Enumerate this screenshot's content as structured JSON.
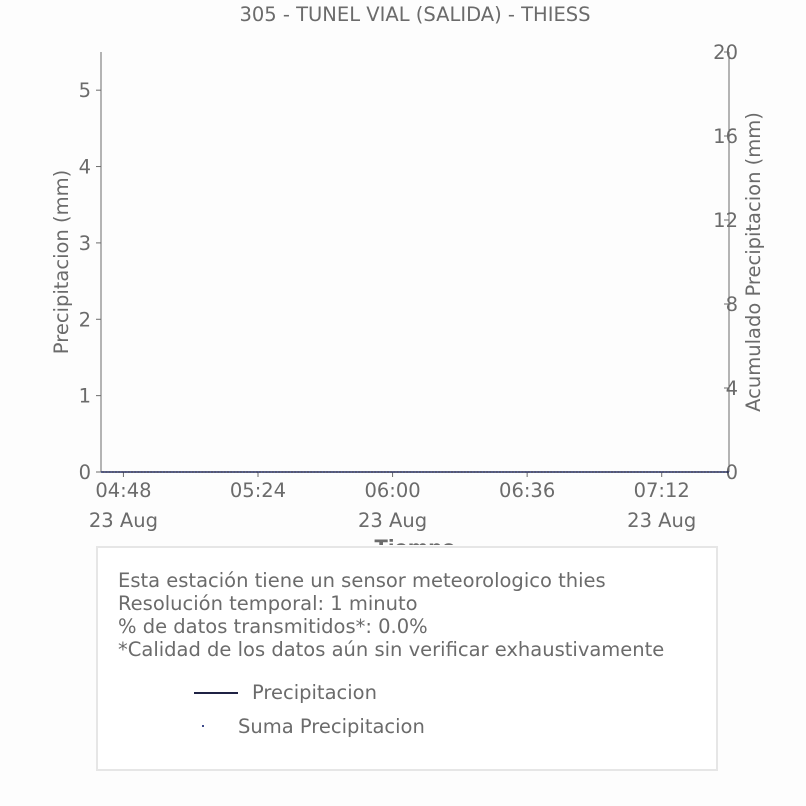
{
  "chart_data": {
    "type": "line",
    "title": "305 - TUNEL VIAL (SALIDA) - THIESS",
    "xlabel": "Tiempo",
    "ylabel": "Precipitacion (mm)",
    "y2label": "Acumulado Precipitacion (mm)",
    "x_ticks": [
      {
        "time": "04:48",
        "date": "23 Aug"
      },
      {
        "time": "05:24",
        "date": ""
      },
      {
        "time": "06:00",
        "date": "23 Aug"
      },
      {
        "time": "06:36",
        "date": ""
      },
      {
        "time": "07:12",
        "date": "23 Aug"
      }
    ],
    "x_range": [
      "04:42",
      "07:30"
    ],
    "ylim": [
      0,
      5.5
    ],
    "y_ticks": [
      0,
      1,
      2,
      3,
      4,
      5
    ],
    "y2lim": [
      0,
      20
    ],
    "y2_ticks": [
      0,
      4,
      8,
      12,
      16,
      20
    ],
    "grid": false,
    "series": [
      {
        "name": "Precipitacion",
        "axis": "left",
        "style": "line",
        "color": "#1f2244",
        "x": [
          "04:42",
          "07:30"
        ],
        "values": [
          0,
          0
        ]
      },
      {
        "name": "Suma Precipitacion",
        "axis": "right",
        "style": "dotted",
        "color": "#3d4a8a",
        "x": [
          "04:42",
          "07:30"
        ],
        "values": [
          0,
          0
        ]
      }
    ]
  },
  "info": {
    "lines": [
      "Esta estación tiene un sensor meteorologico thies",
      "Resolución temporal: 1 minuto",
      "% de datos transmitidos*: 0.0%",
      "*Calidad de los datos aún sin verificar exhaustivamente"
    ]
  }
}
